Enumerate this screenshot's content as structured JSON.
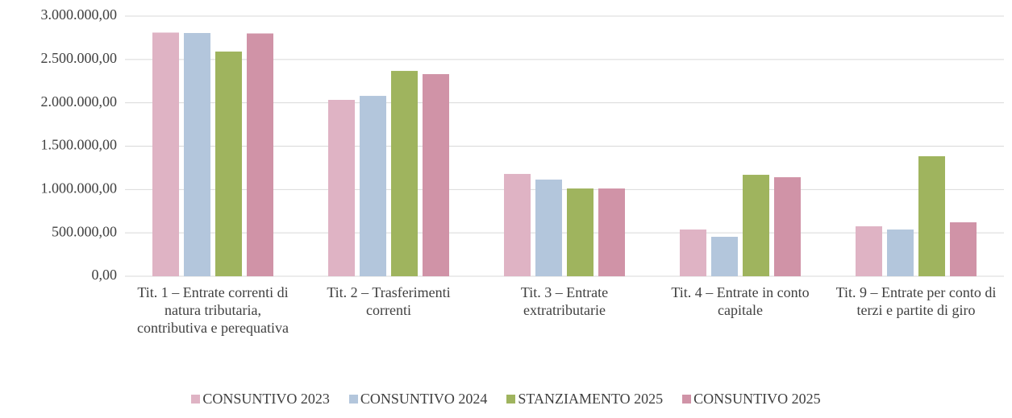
{
  "chart_data": {
    "type": "bar",
    "categories": [
      "Tit. 1 – Entrate correnti di natura tributaria, contributiva e perequativa",
      "Tit. 2 – Trasferimenti correnti",
      "Tit. 3 – Entrate extratributarie",
      "Tit. 4 – Entrate in conto capitale",
      "Tit. 9 – Entrate per conto di terzi e partite di giro"
    ],
    "series": [
      {
        "name": "CONSUNTIVO 2023",
        "color": "#dfb3c4",
        "values": [
          2810000,
          2034000,
          1180000,
          539000,
          576000
        ]
      },
      {
        "name": "CONSUNTIVO 2024",
        "color": "#b3c6dc",
        "values": [
          2805000,
          2080000,
          1115000,
          455000,
          539000
        ]
      },
      {
        "name": "STANZIAMENTO 2025",
        "color": "#9fb45e",
        "values": [
          2591000,
          2368000,
          1012000,
          1170000,
          1384000
        ]
      },
      {
        "name": "CONSUNTIVO 2025",
        "color": "#d093a7",
        "values": [
          2800000,
          2331000,
          1012000,
          1142000,
          622000
        ]
      }
    ],
    "ylim": [
      0,
      3000000
    ],
    "yticks": [
      {
        "value": 0,
        "label": "0,00"
      },
      {
        "value": 500000,
        "label": "500.000,00"
      },
      {
        "value": 1000000,
        "label": "1.000.000,00"
      },
      {
        "value": 1500000,
        "label": "1.500.000,00"
      },
      {
        "value": 2000000,
        "label": "2.000.000,00"
      },
      {
        "value": 2500000,
        "label": "2.500.000,00"
      },
      {
        "value": 3000000,
        "label": "3.000.000,00"
      }
    ],
    "grid": true,
    "legend": "bottom"
  }
}
